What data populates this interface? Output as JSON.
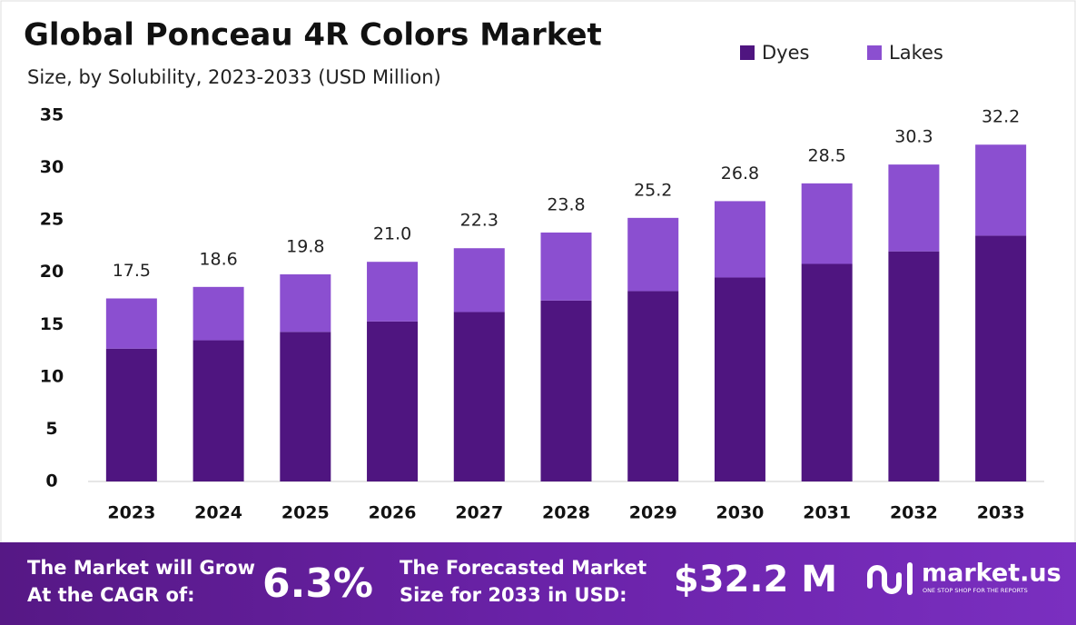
{
  "chart_data": {
    "type": "stacked_bar",
    "title": "Global Ponceau 4R Colors Market",
    "subtitle": "Size, by Solubility, 2023-2033 (USD Million)",
    "categories": [
      "2023",
      "2024",
      "2025",
      "2026",
      "2027",
      "2028",
      "2029",
      "2030",
      "2031",
      "2032",
      "2033"
    ],
    "series": [
      {
        "name": "Dyes",
        "color": "#4f1580",
        "values": [
          12.7,
          13.5,
          14.3,
          15.3,
          16.2,
          17.3,
          18.2,
          19.5,
          20.8,
          22.0,
          23.5
        ]
      },
      {
        "name": "Lakes",
        "color": "#8b4fd0",
        "values": [
          4.8,
          5.1,
          5.5,
          5.7,
          6.1,
          6.5,
          7.0,
          7.3,
          7.7,
          8.3,
          8.7
        ]
      }
    ],
    "totals": [
      17.5,
      18.6,
      19.8,
      {
        "value": 21.0,
        "label": "21.0"
      },
      22.3,
      23.8,
      25.2,
      26.8,
      28.5,
      30.3,
      32.2
    ],
    "ylim": [
      0,
      35
    ],
    "yticks": [
      0,
      5,
      10,
      15,
      20,
      25,
      30,
      35
    ],
    "grid": false,
    "legend": "top-right"
  },
  "footer": {
    "cagr_text": [
      "The Market will Grow",
      "At the CAGR of:"
    ],
    "cagr_value": "6.3%",
    "forecast_text": [
      "The Forecasted Market",
      "Size for 2033 in USD:"
    ],
    "forecast_value": "$32.2 M",
    "brand": "market.us",
    "tagline": "ONE STOP SHOP FOR THE REPORTS"
  }
}
